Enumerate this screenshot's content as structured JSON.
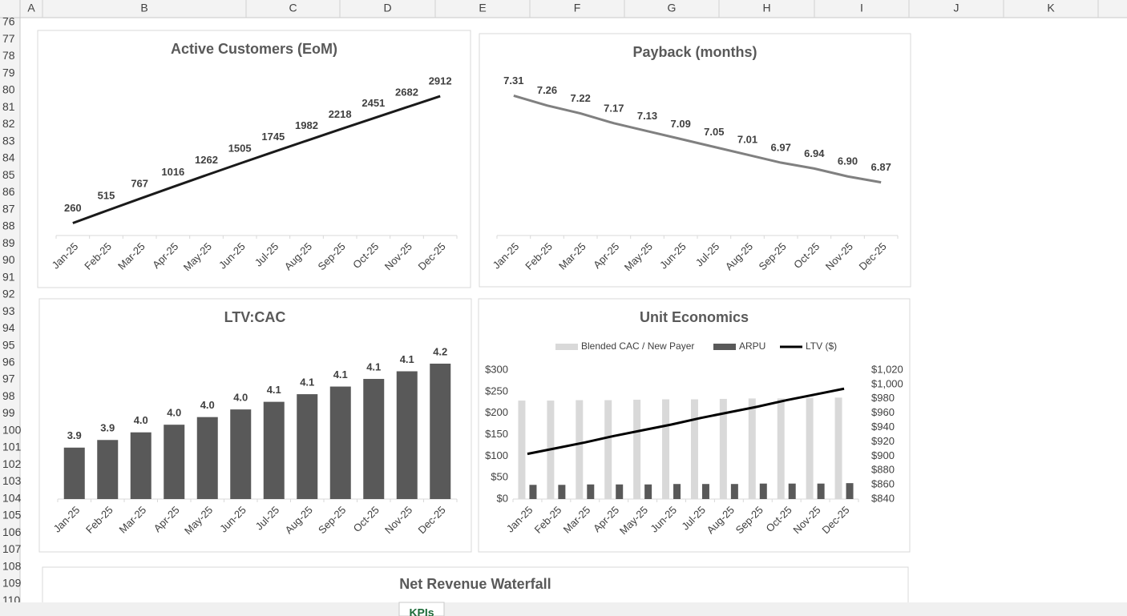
{
  "sheet": {
    "columns": [
      "A",
      "B",
      "C",
      "D",
      "E",
      "F",
      "G",
      "H",
      "I",
      "J",
      "K"
    ],
    "rows": [
      76,
      77,
      78,
      79,
      80,
      81,
      82,
      83,
      84,
      85,
      86,
      87,
      88,
      89,
      90,
      91,
      92,
      93,
      94,
      95,
      96,
      97,
      98,
      99,
      100,
      101,
      102,
      103,
      104,
      105,
      106,
      107,
      108,
      109,
      110
    ],
    "partial_chart_title": "Net Revenue Waterfall",
    "active_tab": "KPIs"
  },
  "chart_data": [
    {
      "type": "line",
      "title": "Active Customers (EoM)",
      "color": "#1a1a1a",
      "categories": [
        "Jan-25",
        "Feb-25",
        "Mar-25",
        "Apr-25",
        "May-25",
        "Jun-25",
        "Jul-25",
        "Aug-25",
        "Sep-25",
        "Oct-25",
        "Nov-25",
        "Dec-25"
      ],
      "values": [
        260,
        515,
        767,
        1016,
        1262,
        1505,
        1745,
        1982,
        2218,
        2451,
        2682,
        2912
      ],
      "ylim": [
        0,
        3500
      ]
    },
    {
      "type": "line",
      "title": "Payback (months)",
      "color": "#808080",
      "categories": [
        "Jan-25",
        "Feb-25",
        "Mar-25",
        "Apr-25",
        "May-25",
        "Jun-25",
        "Jul-25",
        "Aug-25",
        "Sep-25",
        "Oct-25",
        "Nov-25",
        "Dec-25"
      ],
      "values": [
        7.31,
        7.26,
        7.22,
        7.17,
        7.13,
        7.09,
        7.05,
        7.01,
        6.97,
        6.94,
        6.9,
        6.87
      ],
      "value_labels": [
        "7.31",
        "7.26",
        "7.22",
        "7.17",
        "7.13",
        "7.09",
        "7.05",
        "7.01",
        "6.97",
        "6.94",
        "6.90",
        "6.87"
      ],
      "ylim": [
        6.6,
        7.45
      ]
    },
    {
      "type": "bar",
      "title": "LTV:CAC",
      "color": "#595959",
      "categories": [
        "Jan-25",
        "Feb-25",
        "Mar-25",
        "Apr-25",
        "May-25",
        "Jun-25",
        "Jul-25",
        "Aug-25",
        "Sep-25",
        "Oct-25",
        "Nov-25",
        "Dec-25"
      ],
      "values": [
        3.915,
        3.938,
        3.961,
        3.984,
        4.007,
        4.03,
        4.053,
        4.076,
        4.099,
        4.122,
        4.145,
        4.168
      ],
      "value_labels": [
        "3.9",
        "3.9",
        "4.0",
        "4.0",
        "4.0",
        "4.0",
        "4.1",
        "4.1",
        "4.1",
        "4.1",
        "4.1",
        "4.2"
      ],
      "ylim": [
        3.76,
        4.25
      ]
    },
    {
      "type": "combo",
      "title": "Unit Economics",
      "legend": "top",
      "categories": [
        "Jan-25",
        "Feb-25",
        "Mar-25",
        "Apr-25",
        "May-25",
        "Jun-25",
        "Jul-25",
        "Aug-25",
        "Sep-25",
        "Oct-25",
        "Nov-25",
        "Dec-25"
      ],
      "series": [
        {
          "name": "Blended CAC / New Payer",
          "type": "bar",
          "color": "#d9d9d9",
          "values": [
            229,
            229,
            230,
            230,
            231,
            232,
            232,
            233,
            234,
            234,
            235,
            236
          ]
        },
        {
          "name": "ARPU",
          "type": "bar",
          "color": "#595959",
          "values": [
            33,
            33,
            34,
            34,
            34,
            35,
            35,
            35,
            36,
            36,
            36,
            37
          ]
        },
        {
          "name": "LTV ($)",
          "type": "line",
          "axis": "y2",
          "color": "#000000",
          "values": [
            903,
            911,
            919,
            928,
            936,
            944,
            953,
            961,
            969,
            978,
            986,
            994
          ]
        }
      ],
      "ylim": [
        0,
        300
      ],
      "yticks": [
        {
          "value": 0,
          "label": "$0"
        },
        {
          "value": 50,
          "label": "$50"
        },
        {
          "value": 100,
          "label": "$100"
        },
        {
          "value": 150,
          "label": "$150"
        },
        {
          "value": 200,
          "label": "$200"
        },
        {
          "value": 250,
          "label": "$250"
        },
        {
          "value": 300,
          "label": "$300"
        }
      ],
      "y2lim": [
        840,
        1020
      ],
      "y2ticks": [
        {
          "value": 840,
          "label": "$840"
        },
        {
          "value": 860,
          "label": "$860"
        },
        {
          "value": 880,
          "label": "$880"
        },
        {
          "value": 900,
          "label": "$900"
        },
        {
          "value": 920,
          "label": "$920"
        },
        {
          "value": 940,
          "label": "$940"
        },
        {
          "value": 960,
          "label": "$960"
        },
        {
          "value": 980,
          "label": "$980"
        },
        {
          "value": 1000,
          "label": "$1,000"
        },
        {
          "value": 1020,
          "label": "$1,020"
        }
      ]
    }
  ]
}
